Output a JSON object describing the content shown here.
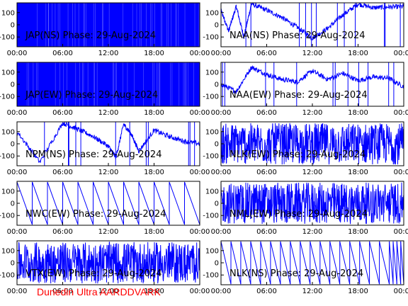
{
  "chart_data": [
    {
      "type": "line",
      "title": "JAP(NS) Phase: 29-Aug-2024",
      "ylim": [
        -180,
        180
      ],
      "yticks": [
        100,
        0,
        -100
      ],
      "xticks": [
        "00:00",
        "06:00",
        "12:00",
        "18:00",
        "00:00"
      ],
      "grid": false,
      "series": [
        {
          "x": [
            0,
            24
          ],
          "y": [
            -180,
            180
          ],
          "description": "saturated noise band"
        }
      ]
    },
    {
      "type": "line",
      "title": "NAA(NS) Phase: 29-Aug-2024",
      "ylim": [
        -180,
        180
      ],
      "yticks": [
        100,
        0,
        -100
      ],
      "xticks": [
        "00:00",
        "06:00",
        "12:00",
        "18:00",
        "00:00"
      ],
      "grid": false,
      "series": [
        {
          "x": [
            0,
            1,
            2,
            3,
            4,
            6,
            8,
            10,
            12,
            14,
            16,
            18,
            20,
            22,
            24
          ],
          "y": [
            120,
            -50,
            150,
            -100,
            170,
            120,
            60,
            -20,
            -110,
            -30,
            80,
            170,
            140,
            145,
            150
          ]
        }
      ]
    },
    {
      "type": "line",
      "title": "JAP(EW) Phase: 29-Aug-2024",
      "ylim": [
        -180,
        180
      ],
      "yticks": [
        100,
        0,
        -100
      ],
      "xticks": [
        "00:00",
        "06:00",
        "12:00",
        "18:00",
        "00:00"
      ],
      "grid": false,
      "series": [
        {
          "x": [
            0,
            24
          ],
          "y": [
            -180,
            180
          ],
          "description": "saturated noise band"
        }
      ]
    },
    {
      "type": "line",
      "title": "NAA(EW) Phase: 29-Aug-2024",
      "ylim": [
        -180,
        180
      ],
      "yticks": [
        100,
        0,
        -100
      ],
      "xticks": [
        "00:00",
        "06:00",
        "12:00",
        "18:00",
        "00:00"
      ],
      "grid": false,
      "series": [
        {
          "x": [
            0,
            2,
            4,
            6,
            8,
            10,
            12,
            14,
            16,
            18,
            20,
            22,
            24
          ],
          "y": [
            0,
            -60,
            140,
            80,
            40,
            20,
            110,
            40,
            90,
            30,
            60,
            50,
            -20
          ]
        }
      ]
    },
    {
      "type": "line",
      "title": "NPM(NS) Phase: 29-Aug-2024",
      "ylim": [
        -180,
        180
      ],
      "yticks": [
        100,
        0,
        -100
      ],
      "xticks": [
        "00:00",
        "06:00",
        "12:00",
        "18:00",
        "00:00"
      ],
      "grid": false,
      "series": [
        {
          "x": [
            0,
            3,
            6,
            8,
            10,
            12,
            13,
            14,
            15,
            16,
            18,
            20,
            22,
            24
          ],
          "y": [
            100,
            -150,
            170,
            120,
            60,
            -20,
            -110,
            160,
            80,
            -60,
            110,
            60,
            20,
            0
          ]
        }
      ]
    },
    {
      "type": "line",
      "title": "NLK(EW) Phase: 29-Aug-2024",
      "ylim": [
        -180,
        180
      ],
      "yticks": [
        100,
        0,
        -100
      ],
      "xticks": [
        "00:00",
        "06:00",
        "12:00",
        "18:00",
        "00:00"
      ],
      "grid": false,
      "series": [
        {
          "x": [
            0,
            24
          ],
          "y": [
            -180,
            180
          ],
          "description": "dense noise band"
        }
      ]
    },
    {
      "type": "line",
      "title": "NWC(EW) Phase: 29-Aug-2024",
      "ylim": [
        -180,
        180
      ],
      "yticks": [
        100,
        0,
        -100
      ],
      "xticks": [
        "00:00",
        "06:00",
        "12:00",
        "18:00",
        "00:00"
      ],
      "grid": false,
      "series": [
        {
          "x": [
            0,
            24
          ],
          "y": [
            180,
            -180
          ],
          "description": "repeating phase ramps"
        }
      ]
    },
    {
      "type": "line",
      "title": "NML(EW) Phase: 29-Aug-2024",
      "ylim": [
        -180,
        180
      ],
      "yticks": [
        100,
        0,
        -100
      ],
      "xticks": [
        "00:00",
        "06:00",
        "12:00",
        "18:00",
        "00:00"
      ],
      "grid": false,
      "series": [
        {
          "x": [
            0,
            24
          ],
          "y": [
            -180,
            180
          ],
          "description": "dense noise band"
        }
      ]
    },
    {
      "type": "line",
      "title": "VTX(EW) Phase: 29-Aug-2024",
      "ylim": [
        -180,
        180
      ],
      "yticks": [
        100,
        0,
        -100
      ],
      "xticks": [
        "00:00",
        "06:00",
        "12:00",
        "18:00",
        "00:00"
      ],
      "grid": false,
      "series": [
        {
          "x": [
            0,
            24
          ],
          "y": [
            -180,
            180
          ],
          "description": "dense noise band"
        }
      ]
    },
    {
      "type": "line",
      "title": "NLK(NS) Phase: 29-Aug-2024",
      "ylim": [
        -180,
        180
      ],
      "yticks": [
        100,
        0,
        -100
      ],
      "xticks": [
        "00:00",
        "06:00",
        "12:00",
        "18:00",
        "00:00"
      ],
      "grid": false,
      "series": [
        {
          "x": [
            0,
            24
          ],
          "y": [
            180,
            -180
          ],
          "description": "repeating phase ramps, dense after 21:00"
        }
      ]
    }
  ],
  "footer": "Dunedin Ultra AARDDVARK",
  "colors": {
    "trace": "#0000ff",
    "axes": "#000000",
    "footer": "#ff0000"
  }
}
